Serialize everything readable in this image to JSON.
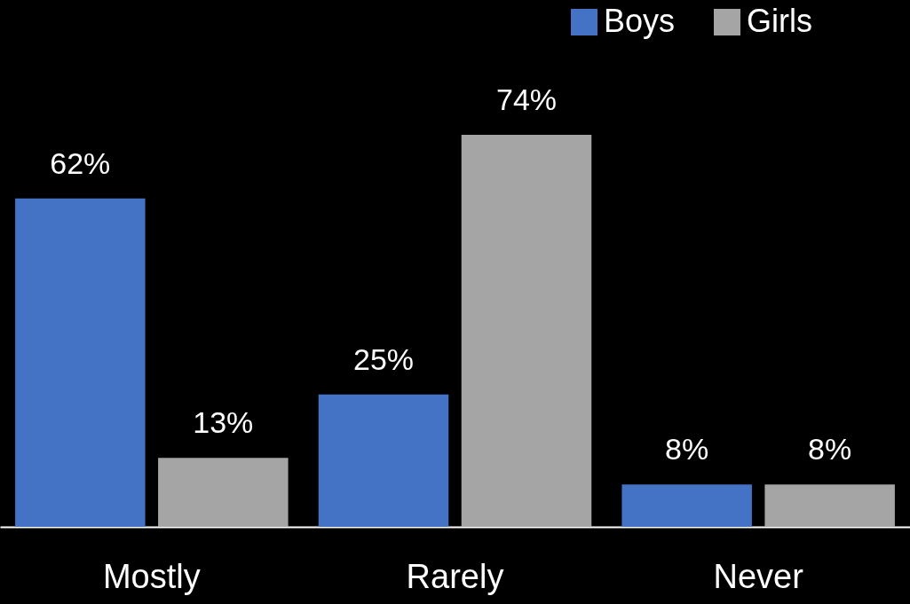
{
  "chart_data": {
    "type": "bar",
    "categories": [
      "Mostly",
      "Rarely",
      "Never"
    ],
    "series": [
      {
        "name": "Boys",
        "color": "#4472c4",
        "values": [
          62,
          25,
          8
        ],
        "value_labels": [
          "62%",
          "25%",
          "8%"
        ]
      },
      {
        "name": "Girls",
        "color": "#a5a5a5",
        "values": [
          13,
          74,
          8
        ],
        "value_labels": [
          "13%",
          "74%",
          "8%"
        ]
      }
    ],
    "legend": "top right",
    "grid": false
  }
}
